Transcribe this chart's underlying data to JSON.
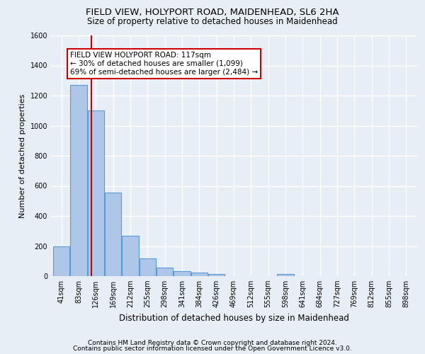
{
  "title": "FIELD VIEW, HOLYPORT ROAD, MAIDENHEAD, SL6 2HA",
  "subtitle": "Size of property relative to detached houses in Maidenhead",
  "xlabel": "Distribution of detached houses by size in Maidenhead",
  "ylabel": "Number of detached properties",
  "footer_line1": "Contains HM Land Registry data © Crown copyright and database right 2024.",
  "footer_line2": "Contains public sector information licensed under the Open Government Licence v3.0.",
  "bar_labels": [
    "41sqm",
    "83sqm",
    "126sqm",
    "169sqm",
    "212sqm",
    "255sqm",
    "298sqm",
    "341sqm",
    "384sqm",
    "426sqm",
    "469sqm",
    "512sqm",
    "555sqm",
    "598sqm",
    "641sqm",
    "684sqm",
    "727sqm",
    "769sqm",
    "812sqm",
    "855sqm",
    "898sqm"
  ],
  "bar_values": [
    200,
    1270,
    1100,
    555,
    270,
    120,
    55,
    32,
    22,
    14,
    0,
    0,
    0,
    14,
    0,
    0,
    0,
    0,
    0,
    0,
    0
  ],
  "bar_color": "#aec6e8",
  "bar_edge_color": "#5b9bd5",
  "annotation_line1": "FIELD VIEW HOLYPORT ROAD: 117sqm",
  "annotation_line2": "← 30% of detached houses are smaller (1,099)",
  "annotation_line3": "69% of semi-detached houses are larger (2,484) →",
  "annotation_box_color": "#ffffff",
  "annotation_box_edge": "#cc0000",
  "vline_color": "#cc0000",
  "vline_x": 1.75,
  "ylim": [
    0,
    1600
  ],
  "yticks": [
    0,
    200,
    400,
    600,
    800,
    1000,
    1200,
    1400,
    1600
  ],
  "bg_color": "#e8eef5",
  "grid_color": "#ffffff",
  "title_fontsize": 9.5,
  "subtitle_fontsize": 8.5,
  "xlabel_fontsize": 8.5,
  "ylabel_fontsize": 8,
  "tick_fontsize": 7,
  "annot_fontsize": 7.5,
  "footer_fontsize": 6.5
}
